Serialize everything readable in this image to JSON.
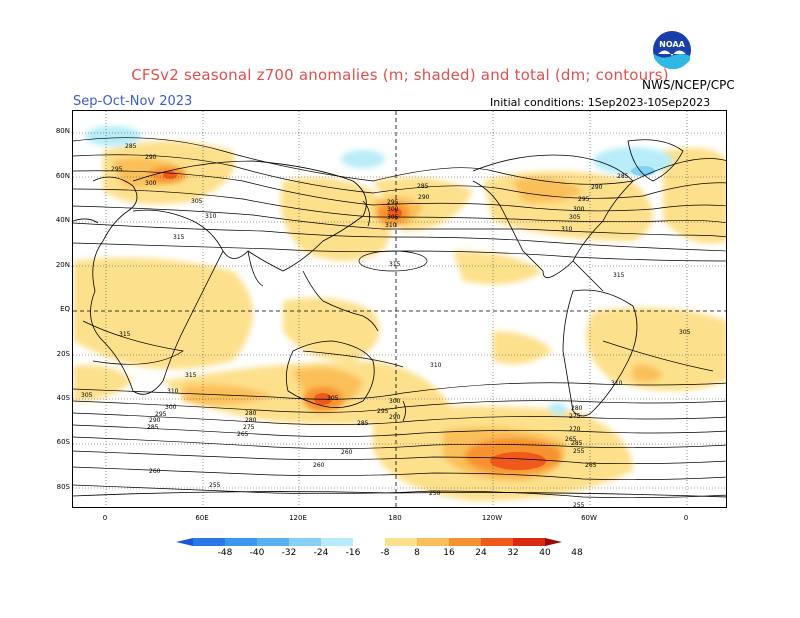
{
  "title": "CFSv2 seasonal z700 anomalies (m; shaded) and total (dm; contours)",
  "season": "Sep-Oct-Nov 2023",
  "initial_conditions": "Initial conditions: 1Sep2023-10Sep2023",
  "org": "NWS/NCEP/CPC",
  "logo_text": "NOAA",
  "lat_labels": [
    "80N",
    "60N",
    "40N",
    "20N",
    "EQ",
    "20S",
    "40S",
    "60S",
    "80S"
  ],
  "lon_labels": [
    "0",
    "60E",
    "120E",
    "180",
    "120W",
    "60W",
    "0"
  ],
  "colorbar": {
    "labels": [
      "-48",
      "-40",
      "-32",
      "-24",
      "-16",
      "-8",
      "8",
      "16",
      "24",
      "32",
      "40",
      "48"
    ],
    "colors": [
      "#1a55d8",
      "#2a78e8",
      "#3b96ef",
      "#58b2f2",
      "#86cff5",
      "#b8ecf8",
      "#ffffff",
      "#fde08c",
      "#fbbf5a",
      "#f7922f",
      "#ef5a1c",
      "#d92a10",
      "#9d0a04"
    ]
  },
  "contour_labels": [
    {
      "t": "285"
    },
    {
      "t": "290"
    },
    {
      "t": "295"
    },
    {
      "t": "300"
    },
    {
      "t": "305"
    },
    {
      "t": "310"
    },
    {
      "t": "315"
    },
    {
      "t": "285"
    },
    {
      "t": "290"
    },
    {
      "t": "295"
    },
    {
      "t": "300"
    },
    {
      "t": "305"
    },
    {
      "t": "310"
    },
    {
      "t": "315"
    },
    {
      "t": "290"
    },
    {
      "t": "295"
    },
    {
      "t": "300"
    },
    {
      "t": "305"
    },
    {
      "t": "310"
    },
    {
      "t": "285"
    },
    {
      "t": "315"
    },
    {
      "t": "315"
    },
    {
      "t": "315"
    },
    {
      "t": "310"
    },
    {
      "t": "310"
    },
    {
      "t": "310"
    },
    {
      "t": "305"
    },
    {
      "t": "300"
    },
    {
      "t": "295"
    },
    {
      "t": "290"
    },
    {
      "t": "285"
    },
    {
      "t": "280"
    },
    {
      "t": "275"
    },
    {
      "t": "265"
    },
    {
      "t": "260"
    },
    {
      "t": "305"
    },
    {
      "t": "305"
    },
    {
      "t": "300"
    },
    {
      "t": "295"
    },
    {
      "t": "290"
    },
    {
      "t": "285"
    },
    {
      "t": "280"
    },
    {
      "t": "275"
    },
    {
      "t": "270"
    },
    {
      "t": "265"
    },
    {
      "t": "260"
    },
    {
      "t": "255"
    },
    {
      "t": "250"
    },
    {
      "t": "255"
    },
    {
      "t": "265"
    },
    {
      "t": "285"
    },
    {
      "t": "280"
    },
    {
      "t": "260"
    },
    {
      "t": "255"
    }
  ]
}
